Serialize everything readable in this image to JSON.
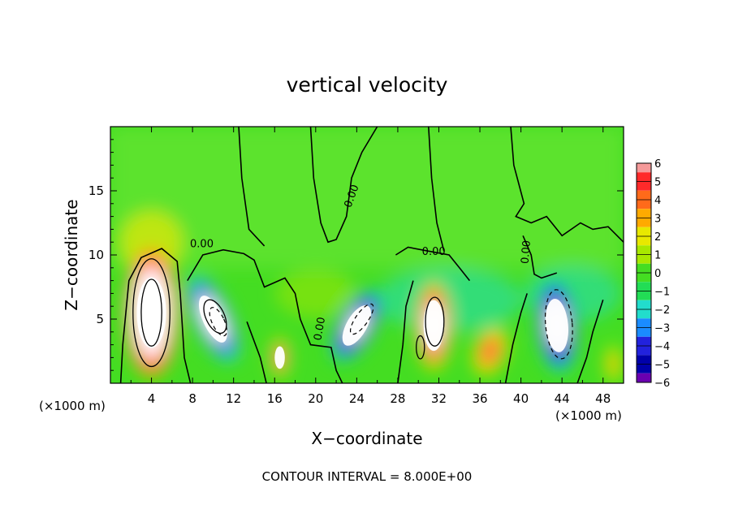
{
  "chart_data": {
    "type": "heatmap",
    "title": "vertical velocity",
    "xlabel": "X−coordinate",
    "ylabel": "Z−coordinate",
    "x_unit": "(×1000 m)",
    "footer": "CONTOUR INTERVAL = 8.000E+00",
    "xlim": [
      0,
      50
    ],
    "ylim": [
      0,
      20
    ],
    "xticks": [
      4,
      8,
      12,
      16,
      20,
      24,
      28,
      32,
      36,
      40,
      44,
      48
    ],
    "yticks": [
      5,
      10,
      15
    ],
    "colorbar": {
      "levels": [
        6,
        5,
        4,
        3,
        2,
        1,
        0,
        -1,
        -2,
        -3,
        -4,
        -5,
        -6
      ],
      "labels": [
        "6",
        "5",
        "4",
        "3",
        "2",
        "1",
        "0",
        "−1",
        "−2",
        "−3",
        "−4",
        "−5",
        "−6"
      ],
      "colors": [
        "#f59a9a",
        "#ff2a2a",
        "#ff6a1a",
        "#ffaa00",
        "#e8e800",
        "#a8e800",
        "#44dd22",
        "#22dd55",
        "#22ddcc",
        "#1a8cff",
        "#2222dd",
        "#0000aa",
        "#6a00b0"
      ],
      "above_max_color": "#ffffff"
    },
    "contour_labels": [
      "0.00",
      "0.00",
      "0.00",
      "0.00",
      "0.00"
    ],
    "features": [
      {
        "x": 4.0,
        "z": 5.5,
        "w": 18.0
      },
      {
        "x": 10.0,
        "z": 5.0,
        "w": -12.0
      },
      {
        "x": 16.5,
        "z": 2.0,
        "w": 7.0
      },
      {
        "x": 24.0,
        "z": 4.5,
        "w": -10.0
      },
      {
        "x": 31.5,
        "z": 4.5,
        "w": 10.0
      },
      {
        "x": 37.0,
        "z": 2.5,
        "w": 6.0
      },
      {
        "x": 43.5,
        "z": 4.5,
        "w": -10.0
      },
      {
        "x": 49.0,
        "z": 1.5,
        "w": 4.0
      }
    ]
  }
}
